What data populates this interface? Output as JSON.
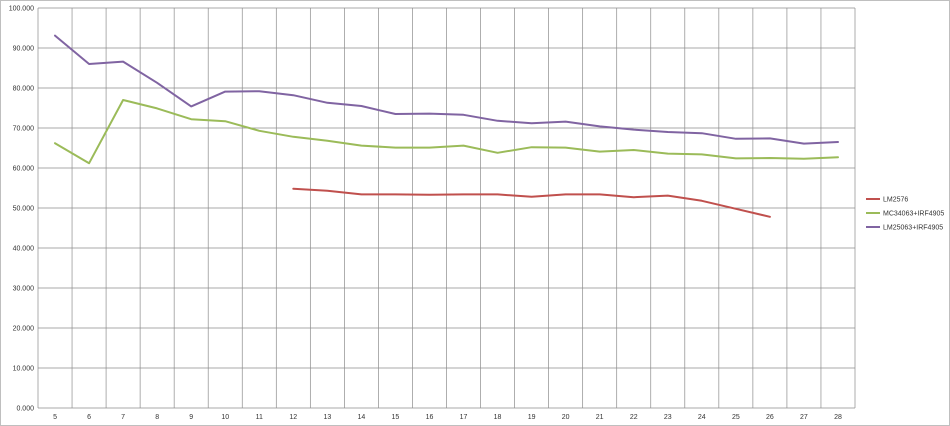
{
  "chart_data": {
    "type": "line",
    "x": [
      5,
      6,
      7,
      8,
      9,
      10,
      11,
      12,
      13,
      14,
      15,
      16,
      17,
      18,
      19,
      20,
      21,
      22,
      23,
      24,
      25,
      26,
      27,
      28
    ],
    "y_ticks": [
      "0.000",
      "10.000",
      "20.000",
      "30.000",
      "40.000",
      "50.000",
      "60.000",
      "70.000",
      "80.000",
      "90.000",
      "100.000"
    ],
    "ylim": [
      0,
      100
    ],
    "grid": true,
    "legend_position": "right",
    "series": [
      {
        "name": "LM2576",
        "color": "#c0504d",
        "values": [
          null,
          null,
          null,
          null,
          null,
          null,
          null,
          54.8,
          54.3,
          53.4,
          53.4,
          53.3,
          53.4,
          53.4,
          52.8,
          53.4,
          53.4,
          52.7,
          53.1,
          51.8,
          49.8,
          47.8,
          null,
          null
        ]
      },
      {
        "name": "MC34063+IRF4905",
        "color": "#9bbb59",
        "values": [
          66.2,
          61.2,
          77.0,
          74.9,
          72.2,
          71.7,
          69.3,
          67.8,
          66.8,
          65.6,
          65.1,
          65.1,
          65.6,
          63.8,
          65.2,
          65.1,
          64.1,
          64.5,
          63.6,
          63.4,
          62.4,
          62.5,
          62.3,
          62.7
        ]
      },
      {
        "name": "LM25063+IRF4905",
        "color": "#8064a2",
        "values": [
          93.1,
          86.0,
          86.6,
          81.3,
          75.4,
          79.1,
          79.2,
          78.2,
          76.3,
          75.5,
          73.5,
          73.6,
          73.3,
          71.8,
          71.2,
          71.6,
          70.4,
          69.6,
          69.0,
          68.7,
          67.3,
          67.4,
          66.1,
          66.5
        ]
      }
    ]
  }
}
